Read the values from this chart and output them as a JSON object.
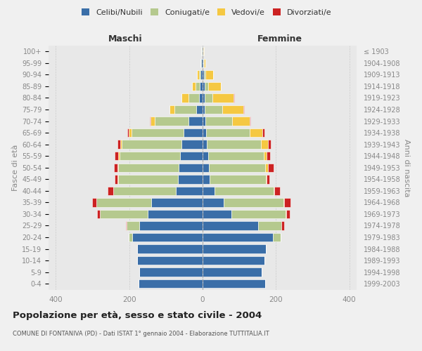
{
  "age_groups": [
    "0-4",
    "5-9",
    "10-14",
    "15-19",
    "20-24",
    "25-29",
    "30-34",
    "35-39",
    "40-44",
    "45-49",
    "50-54",
    "55-59",
    "60-64",
    "65-69",
    "70-74",
    "75-79",
    "80-84",
    "85-89",
    "90-94",
    "95-99",
    "100+"
  ],
  "birth_years": [
    "1999-2003",
    "1994-1998",
    "1989-1993",
    "1984-1988",
    "1979-1983",
    "1974-1978",
    "1969-1973",
    "1964-1968",
    "1959-1963",
    "1954-1958",
    "1949-1953",
    "1944-1948",
    "1939-1943",
    "1934-1938",
    "1929-1933",
    "1924-1928",
    "1919-1923",
    "1914-1918",
    "1909-1913",
    "1904-1908",
    "≤ 1903"
  ],
  "colors": {
    "celibi": "#3a6ea8",
    "coniugati": "#b5c98e",
    "vedovi": "#f5c842",
    "divorziati": "#cc2222"
  },
  "males": {
    "celibi": [
      175,
      172,
      178,
      178,
      192,
      172,
      150,
      140,
      72,
      68,
      65,
      62,
      58,
      52,
      38,
      18,
      10,
      8,
      5,
      3,
      2
    ],
    "coniugati": [
      0,
      0,
      0,
      0,
      10,
      35,
      130,
      150,
      172,
      162,
      165,
      165,
      162,
      142,
      92,
      58,
      28,
      12,
      5,
      2,
      1
    ],
    "vedovi": [
      0,
      0,
      0,
      0,
      0,
      0,
      0,
      0,
      0,
      2,
      2,
      3,
      5,
      8,
      12,
      15,
      20,
      8,
      5,
      1,
      0
    ],
    "divorziati": [
      0,
      0,
      0,
      0,
      0,
      2,
      8,
      12,
      15,
      8,
      10,
      10,
      8,
      3,
      2,
      0,
      0,
      0,
      0,
      0,
      0
    ]
  },
  "females": {
    "celibi": [
      170,
      162,
      168,
      172,
      192,
      152,
      78,
      58,
      32,
      20,
      18,
      15,
      12,
      10,
      8,
      5,
      5,
      5,
      3,
      2,
      1
    ],
    "coniugati": [
      0,
      0,
      0,
      0,
      20,
      62,
      148,
      162,
      162,
      152,
      152,
      152,
      148,
      118,
      72,
      48,
      22,
      10,
      5,
      1,
      0
    ],
    "vedovi": [
      0,
      0,
      0,
      0,
      0,
      0,
      2,
      2,
      2,
      2,
      8,
      8,
      18,
      35,
      48,
      58,
      58,
      35,
      20,
      5,
      2
    ],
    "divorziati": [
      0,
      0,
      0,
      0,
      0,
      8,
      10,
      18,
      15,
      8,
      15,
      10,
      8,
      5,
      2,
      2,
      1,
      0,
      0,
      0,
      0
    ]
  },
  "xlim": 420,
  "title": "Popolazione per età, sesso e stato civile - 2004",
  "subtitle": "COMUNE DI FONTANIVA (PD) - Dati ISTAT 1° gennaio 2004 - Elaborazione TUTTITALIA.IT",
  "ylabel_left": "Fasce di età",
  "ylabel_right": "Anni di nascita",
  "xlabel_left": "Maschi",
  "xlabel_right": "Femmine",
  "legend_labels": [
    "Celibi/Nubili",
    "Coniugati/e",
    "Vedovi/e",
    "Divorziati/e"
  ],
  "bg_color": "#f0f0f0",
  "plot_bg_color": "#e8e8e8",
  "bar_height": 0.75,
  "grid_color": "#cccccc",
  "tick_color": "#888888",
  "text_color": "#444444"
}
